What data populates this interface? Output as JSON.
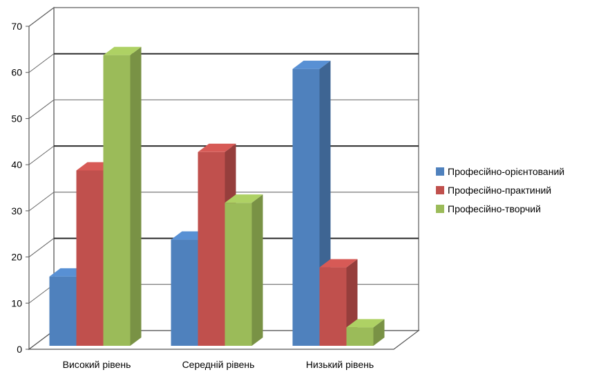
{
  "chart_data": {
    "type": "bar",
    "style": "3d-clustered-column",
    "categories": [
      "Високий рівень",
      "Середній рівень",
      "Низький рівень"
    ],
    "series": [
      {
        "name": "Професійно-орієнтований",
        "values": [
          15,
          23,
          60
        ],
        "color": "#4F81BD"
      },
      {
        "name": "Професійно-практиний",
        "values": [
          38,
          42,
          17
        ],
        "color": "#C0504D"
      },
      {
        "name": "Професійно-творчий",
        "values": [
          63,
          31,
          4
        ],
        "color": "#9BBB59"
      }
    ],
    "yticks": [
      "0",
      "10",
      "20",
      "30",
      "40",
      "50",
      "60",
      "70"
    ],
    "ylim": [
      0,
      70
    ],
    "grid": true,
    "legend_position": "right"
  }
}
